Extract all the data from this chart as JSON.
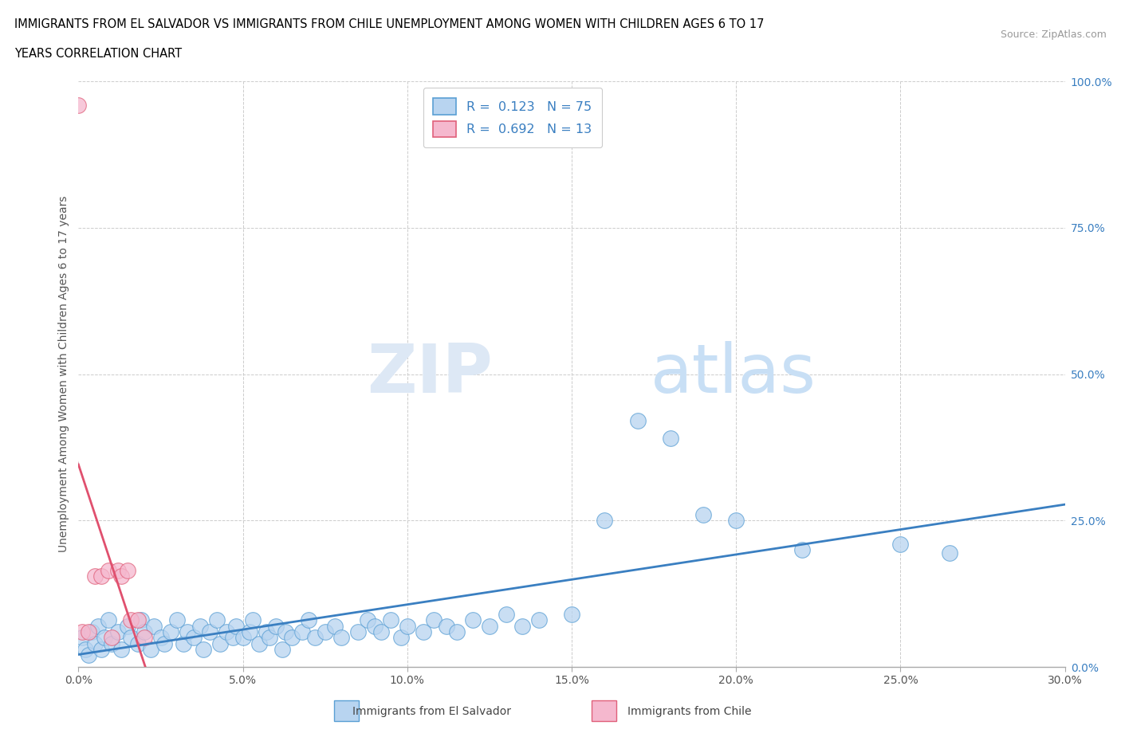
{
  "title_line1": "IMMIGRANTS FROM EL SALVADOR VS IMMIGRANTS FROM CHILE UNEMPLOYMENT AMONG WOMEN WITH CHILDREN AGES 6 TO 17",
  "title_line2": "YEARS CORRELATION CHART",
  "source": "Source: ZipAtlas.com",
  "R_blue": 0.123,
  "N_blue": 75,
  "R_pink": 0.692,
  "N_pink": 13,
  "blue_scatter_color": "#b8d4f0",
  "blue_edge_color": "#5a9fd4",
  "pink_scatter_color": "#f5b8ce",
  "pink_edge_color": "#e0607a",
  "blue_trend_color": "#3a7fc1",
  "pink_trend_color": "#e0506e",
  "pink_dash_color": "#d0a0b0",
  "legend_label_blue": "Immigrants from El Salvador",
  "legend_label_pink": "Immigrants from Chile",
  "watermark_zip": "ZIP",
  "watermark_atlas": "atlas",
  "xlim": [
    0.0,
    0.3
  ],
  "ylim": [
    0.0,
    1.0
  ],
  "xticks": [
    0.0,
    0.05,
    0.1,
    0.15,
    0.2,
    0.25,
    0.3
  ],
  "yticks": [
    0.0,
    0.25,
    0.5,
    0.75,
    1.0
  ],
  "blue_scatter_x": [
    0.001,
    0.002,
    0.003,
    0.004,
    0.005,
    0.006,
    0.007,
    0.008,
    0.009,
    0.01,
    0.012,
    0.013,
    0.015,
    0.016,
    0.018,
    0.019,
    0.02,
    0.022,
    0.023,
    0.025,
    0.026,
    0.028,
    0.03,
    0.032,
    0.033,
    0.035,
    0.037,
    0.038,
    0.04,
    0.042,
    0.043,
    0.045,
    0.047,
    0.048,
    0.05,
    0.052,
    0.053,
    0.055,
    0.057,
    0.058,
    0.06,
    0.062,
    0.063,
    0.065,
    0.068,
    0.07,
    0.072,
    0.075,
    0.078,
    0.08,
    0.085,
    0.088,
    0.09,
    0.092,
    0.095,
    0.098,
    0.1,
    0.105,
    0.108,
    0.112,
    0.115,
    0.12,
    0.125,
    0.13,
    0.135,
    0.14,
    0.15,
    0.16,
    0.17,
    0.18,
    0.19,
    0.2,
    0.22,
    0.25,
    0.265
  ],
  "blue_scatter_y": [
    0.05,
    0.03,
    0.02,
    0.06,
    0.04,
    0.07,
    0.03,
    0.05,
    0.08,
    0.04,
    0.06,
    0.03,
    0.07,
    0.05,
    0.04,
    0.08,
    0.06,
    0.03,
    0.07,
    0.05,
    0.04,
    0.06,
    0.08,
    0.04,
    0.06,
    0.05,
    0.07,
    0.03,
    0.06,
    0.08,
    0.04,
    0.06,
    0.05,
    0.07,
    0.05,
    0.06,
    0.08,
    0.04,
    0.06,
    0.05,
    0.07,
    0.03,
    0.06,
    0.05,
    0.06,
    0.08,
    0.05,
    0.06,
    0.07,
    0.05,
    0.06,
    0.08,
    0.07,
    0.06,
    0.08,
    0.05,
    0.07,
    0.06,
    0.08,
    0.07,
    0.06,
    0.08,
    0.07,
    0.09,
    0.07,
    0.08,
    0.09,
    0.25,
    0.42,
    0.39,
    0.26,
    0.25,
    0.2,
    0.21,
    0.195
  ],
  "pink_scatter_x": [
    0.001,
    0.003,
    0.005,
    0.007,
    0.009,
    0.01,
    0.012,
    0.013,
    0.015,
    0.016,
    0.018,
    0.02,
    0.0
  ],
  "pink_scatter_y": [
    0.06,
    0.06,
    0.155,
    0.155,
    0.165,
    0.05,
    0.165,
    0.155,
    0.165,
    0.08,
    0.08,
    0.05,
    0.96
  ]
}
